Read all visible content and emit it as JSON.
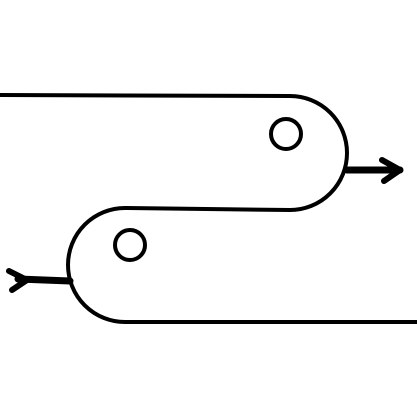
{
  "diagram": {
    "type": "line-icon",
    "description_visible_text": "",
    "colors": {
      "background": "#ffffff",
      "stroke": "#000000"
    },
    "components": [
      {
        "name": "upper-capsule-track"
      },
      {
        "name": "lower-capsule-track"
      },
      {
        "name": "upper-right-arrow"
      },
      {
        "name": "lower-left-arrow"
      },
      {
        "name": "upper-indicator-circle"
      },
      {
        "name": "lower-indicator-circle"
      }
    ]
  }
}
